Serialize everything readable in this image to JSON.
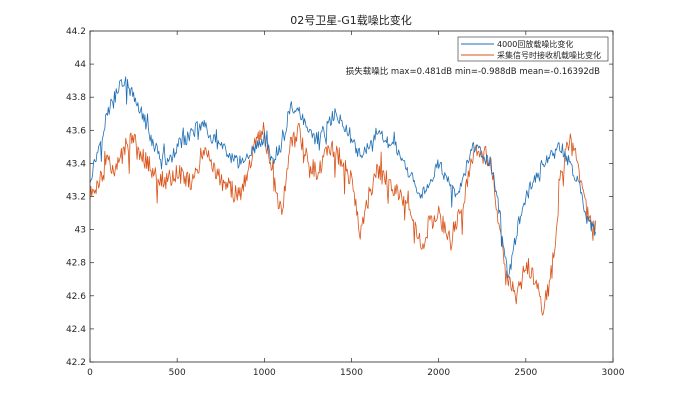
{
  "chart_data": {
    "type": "line",
    "title": "02号卫星-G1载噪比变化",
    "xlabel": "",
    "ylabel": "",
    "xlim": [
      0,
      3000
    ],
    "ylim": [
      42.2,
      44.2
    ],
    "xticks": [
      0,
      500,
      1000,
      1500,
      2000,
      2500,
      3000
    ],
    "yticks": [
      42.2,
      42.4,
      42.6,
      42.8,
      43.0,
      43.2,
      43.4,
      43.6,
      43.8,
      44.0,
      44.2
    ],
    "ytick_labels": [
      "42.2",
      "42.4",
      "42.6",
      "42.8",
      "43",
      "43.2",
      "43.4",
      "43.6",
      "43.8",
      "44",
      "44.2"
    ],
    "grid": false,
    "legend_position": "top-right",
    "annotation": "损失载噪比 max=0.481dB min=-0.988dB mean=-0.16392dB",
    "series": [
      {
        "name": "4000回放载噪比变化",
        "color": "#1f6fb5",
        "noise": 0.04,
        "x": [
          0,
          50,
          100,
          150,
          200,
          250,
          300,
          350,
          400,
          450,
          500,
          550,
          600,
          650,
          700,
          750,
          800,
          850,
          900,
          950,
          1000,
          1050,
          1100,
          1150,
          1200,
          1250,
          1300,
          1350,
          1400,
          1450,
          1500,
          1550,
          1600,
          1650,
          1700,
          1750,
          1800,
          1850,
          1900,
          1950,
          2000,
          2050,
          2100,
          2150,
          2200,
          2250,
          2300,
          2350,
          2400,
          2450,
          2500,
          2550,
          2600,
          2650,
          2700,
          2750,
          2800,
          2850,
          2900
        ],
        "values": [
          43.3,
          43.5,
          43.7,
          43.85,
          43.9,
          43.8,
          43.7,
          43.55,
          43.45,
          43.4,
          43.5,
          43.55,
          43.6,
          43.65,
          43.55,
          43.5,
          43.45,
          43.4,
          43.45,
          43.5,
          43.55,
          43.4,
          43.5,
          43.75,
          43.7,
          43.6,
          43.55,
          43.6,
          43.7,
          43.65,
          43.55,
          43.45,
          43.5,
          43.6,
          43.55,
          43.5,
          43.4,
          43.3,
          43.2,
          43.3,
          43.4,
          43.3,
          43.2,
          43.35,
          43.5,
          43.45,
          43.4,
          43.1,
          42.7,
          43.0,
          43.2,
          43.3,
          43.4,
          43.45,
          43.5,
          43.4,
          43.3,
          43.05,
          43.0
        ]
      },
      {
        "name": "采集信号时接收机载噪比变化",
        "color": "#d95319",
        "noise": 0.06,
        "x": [
          0,
          50,
          100,
          150,
          200,
          250,
          300,
          350,
          400,
          450,
          500,
          550,
          600,
          650,
          700,
          750,
          800,
          850,
          900,
          950,
          1000,
          1050,
          1100,
          1150,
          1200,
          1250,
          1300,
          1350,
          1400,
          1450,
          1500,
          1550,
          1600,
          1650,
          1700,
          1750,
          1800,
          1850,
          1900,
          1950,
          2000,
          2050,
          2100,
          2150,
          2200,
          2250,
          2300,
          2350,
          2400,
          2450,
          2500,
          2550,
          2600,
          2650,
          2700,
          2750,
          2800,
          2850,
          2900
        ],
        "values": [
          43.2,
          43.3,
          43.4,
          43.35,
          43.5,
          43.55,
          43.45,
          43.35,
          43.3,
          43.3,
          43.35,
          43.3,
          43.3,
          43.5,
          43.4,
          43.3,
          43.25,
          43.2,
          43.3,
          43.55,
          43.6,
          43.3,
          43.1,
          43.5,
          43.6,
          43.4,
          43.35,
          43.45,
          43.5,
          43.4,
          43.3,
          43.0,
          43.2,
          43.35,
          43.3,
          43.25,
          43.2,
          43.05,
          42.9,
          43.05,
          43.1,
          42.95,
          43.05,
          43.2,
          43.45,
          43.5,
          43.4,
          43.0,
          42.7,
          42.6,
          42.8,
          42.7,
          42.5,
          42.75,
          43.3,
          43.55,
          43.4,
          43.1,
          43.0
        ]
      }
    ]
  }
}
